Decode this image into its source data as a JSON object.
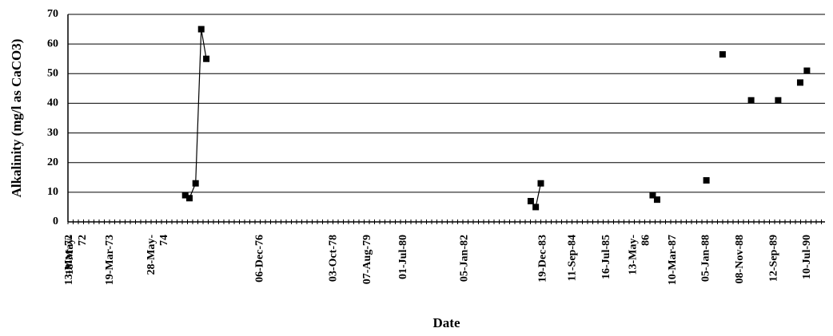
{
  "chart_data": {
    "type": "scatter",
    "ylabel": "Alkalinity (mg/l as CaCO3)",
    "xlabel": "Date",
    "ylim": [
      0,
      70
    ],
    "y_ticks": [
      0,
      10,
      20,
      30,
      40,
      50,
      60,
      70
    ],
    "y_grid": true,
    "x_range": [
      "1972-03-13",
      "1990-12-31"
    ],
    "x_tick_labels": [
      {
        "date": "1972-03-13",
        "lines": [
          "13-Mar-72"
        ]
      },
      {
        "date": "1972-05-18",
        "lines": [
          "18-May-",
          "72"
        ]
      },
      {
        "date": "1973-03-19",
        "lines": [
          "19-Mar-73"
        ]
      },
      {
        "date": "1974-05-28",
        "lines": [
          "28-May-",
          "74"
        ]
      },
      {
        "date": "1976-12-06",
        "lines": [
          "06-Dec-76"
        ]
      },
      {
        "date": "1978-10-03",
        "lines": [
          "03-Oct-78"
        ]
      },
      {
        "date": "1979-08-07",
        "lines": [
          "07-Aug-79"
        ]
      },
      {
        "date": "1980-07-01",
        "lines": [
          "01-Jul-80"
        ]
      },
      {
        "date": "1982-01-05",
        "lines": [
          "05-Jan-82"
        ]
      },
      {
        "date": "1983-12-19",
        "lines": [
          "19-Dec-83"
        ]
      },
      {
        "date": "1984-09-11",
        "lines": [
          "11-Sep-84"
        ]
      },
      {
        "date": "1985-07-16",
        "lines": [
          "16-Jul-85"
        ]
      },
      {
        "date": "1986-05-13",
        "lines": [
          "13-May-",
          "86"
        ]
      },
      {
        "date": "1987-03-10",
        "lines": [
          "10-Mar-87"
        ]
      },
      {
        "date": "1988-01-05",
        "lines": [
          "05-Jan-88"
        ]
      },
      {
        "date": "1988-11-08",
        "lines": [
          "08-Nov-88"
        ]
      },
      {
        "date": "1989-09-12",
        "lines": [
          "12-Sep-89"
        ]
      },
      {
        "date": "1990-07-10",
        "lines": [
          "10-Jul-90"
        ]
      }
    ],
    "series": [
      {
        "points": [
          {
            "x": "1975-02-10",
            "y": 9
          },
          {
            "x": "1975-03-20",
            "y": 8
          },
          {
            "x": "1975-05-15",
            "y": 13
          },
          {
            "x": "1975-07-05",
            "y": 65
          },
          {
            "x": "1975-08-20",
            "y": 55
          },
          {
            "x": "1983-09-10",
            "y": 7
          },
          {
            "x": "1983-10-25",
            "y": 5
          },
          {
            "x": "1983-12-10",
            "y": 13
          },
          {
            "x": "1986-09-20",
            "y": 9
          },
          {
            "x": "1986-10-30",
            "y": 7.5
          },
          {
            "x": "1988-01-20",
            "y": 14
          },
          {
            "x": "1988-06-15",
            "y": 56.5
          },
          {
            "x": "1989-03-01",
            "y": 41
          },
          {
            "x": "1989-11-01",
            "y": 41
          },
          {
            "x": "1990-05-20",
            "y": 47
          },
          {
            "x": "1990-07-20",
            "y": 51
          }
        ],
        "connected_groups": [
          [
            0,
            4
          ],
          [
            5,
            7
          ],
          [
            8,
            9
          ]
        ]
      }
    ]
  }
}
